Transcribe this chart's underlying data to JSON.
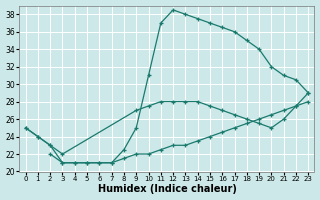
{
  "title": "",
  "xlabel": "Humidex (Indice chaleur)",
  "ylabel": "",
  "bg_color": "#cce8e8",
  "grid_color": "#ffffff",
  "line_color": "#1a7a6e",
  "xlim": [
    -0.5,
    23.5
  ],
  "ylim": [
    20,
    39
  ],
  "yticks": [
    20,
    22,
    24,
    26,
    28,
    30,
    32,
    34,
    36,
    38
  ],
  "xticks": [
    0,
    1,
    2,
    3,
    4,
    5,
    6,
    7,
    8,
    9,
    10,
    11,
    12,
    13,
    14,
    15,
    16,
    17,
    18,
    19,
    20,
    21,
    22,
    23
  ],
  "line1_x": [
    0,
    1,
    2,
    3,
    4,
    5,
    6,
    7,
    8,
    9,
    10,
    11,
    12,
    13,
    14,
    15,
    16,
    17,
    18,
    19,
    20,
    21,
    22,
    23
  ],
  "line1_y": [
    25,
    24,
    23,
    21,
    21,
    21,
    21,
    21,
    22.5,
    25,
    31,
    37,
    38.5,
    38,
    37.5,
    37,
    36.5,
    36,
    35,
    34,
    32,
    31,
    30.5,
    29
  ],
  "line2_x": [
    0,
    1,
    2,
    3,
    9,
    10,
    11,
    12,
    13,
    14,
    15,
    16,
    17,
    18,
    19,
    20,
    21,
    22,
    23
  ],
  "line2_y": [
    25,
    24,
    23,
    22,
    27,
    27.5,
    28,
    28,
    28,
    28,
    27.5,
    27,
    26.5,
    26,
    25.5,
    25,
    26,
    27.5,
    29
  ],
  "line3_x": [
    2,
    3,
    4,
    5,
    6,
    7,
    8,
    9,
    10,
    11,
    12,
    13,
    14,
    15,
    16,
    17,
    18,
    19,
    20,
    21,
    22,
    23
  ],
  "line3_y": [
    22,
    21,
    21,
    21,
    21,
    21,
    21.5,
    22,
    22,
    22.5,
    23,
    23,
    23.5,
    24,
    24.5,
    25,
    25.5,
    26,
    26.5,
    27,
    27.5,
    28
  ]
}
